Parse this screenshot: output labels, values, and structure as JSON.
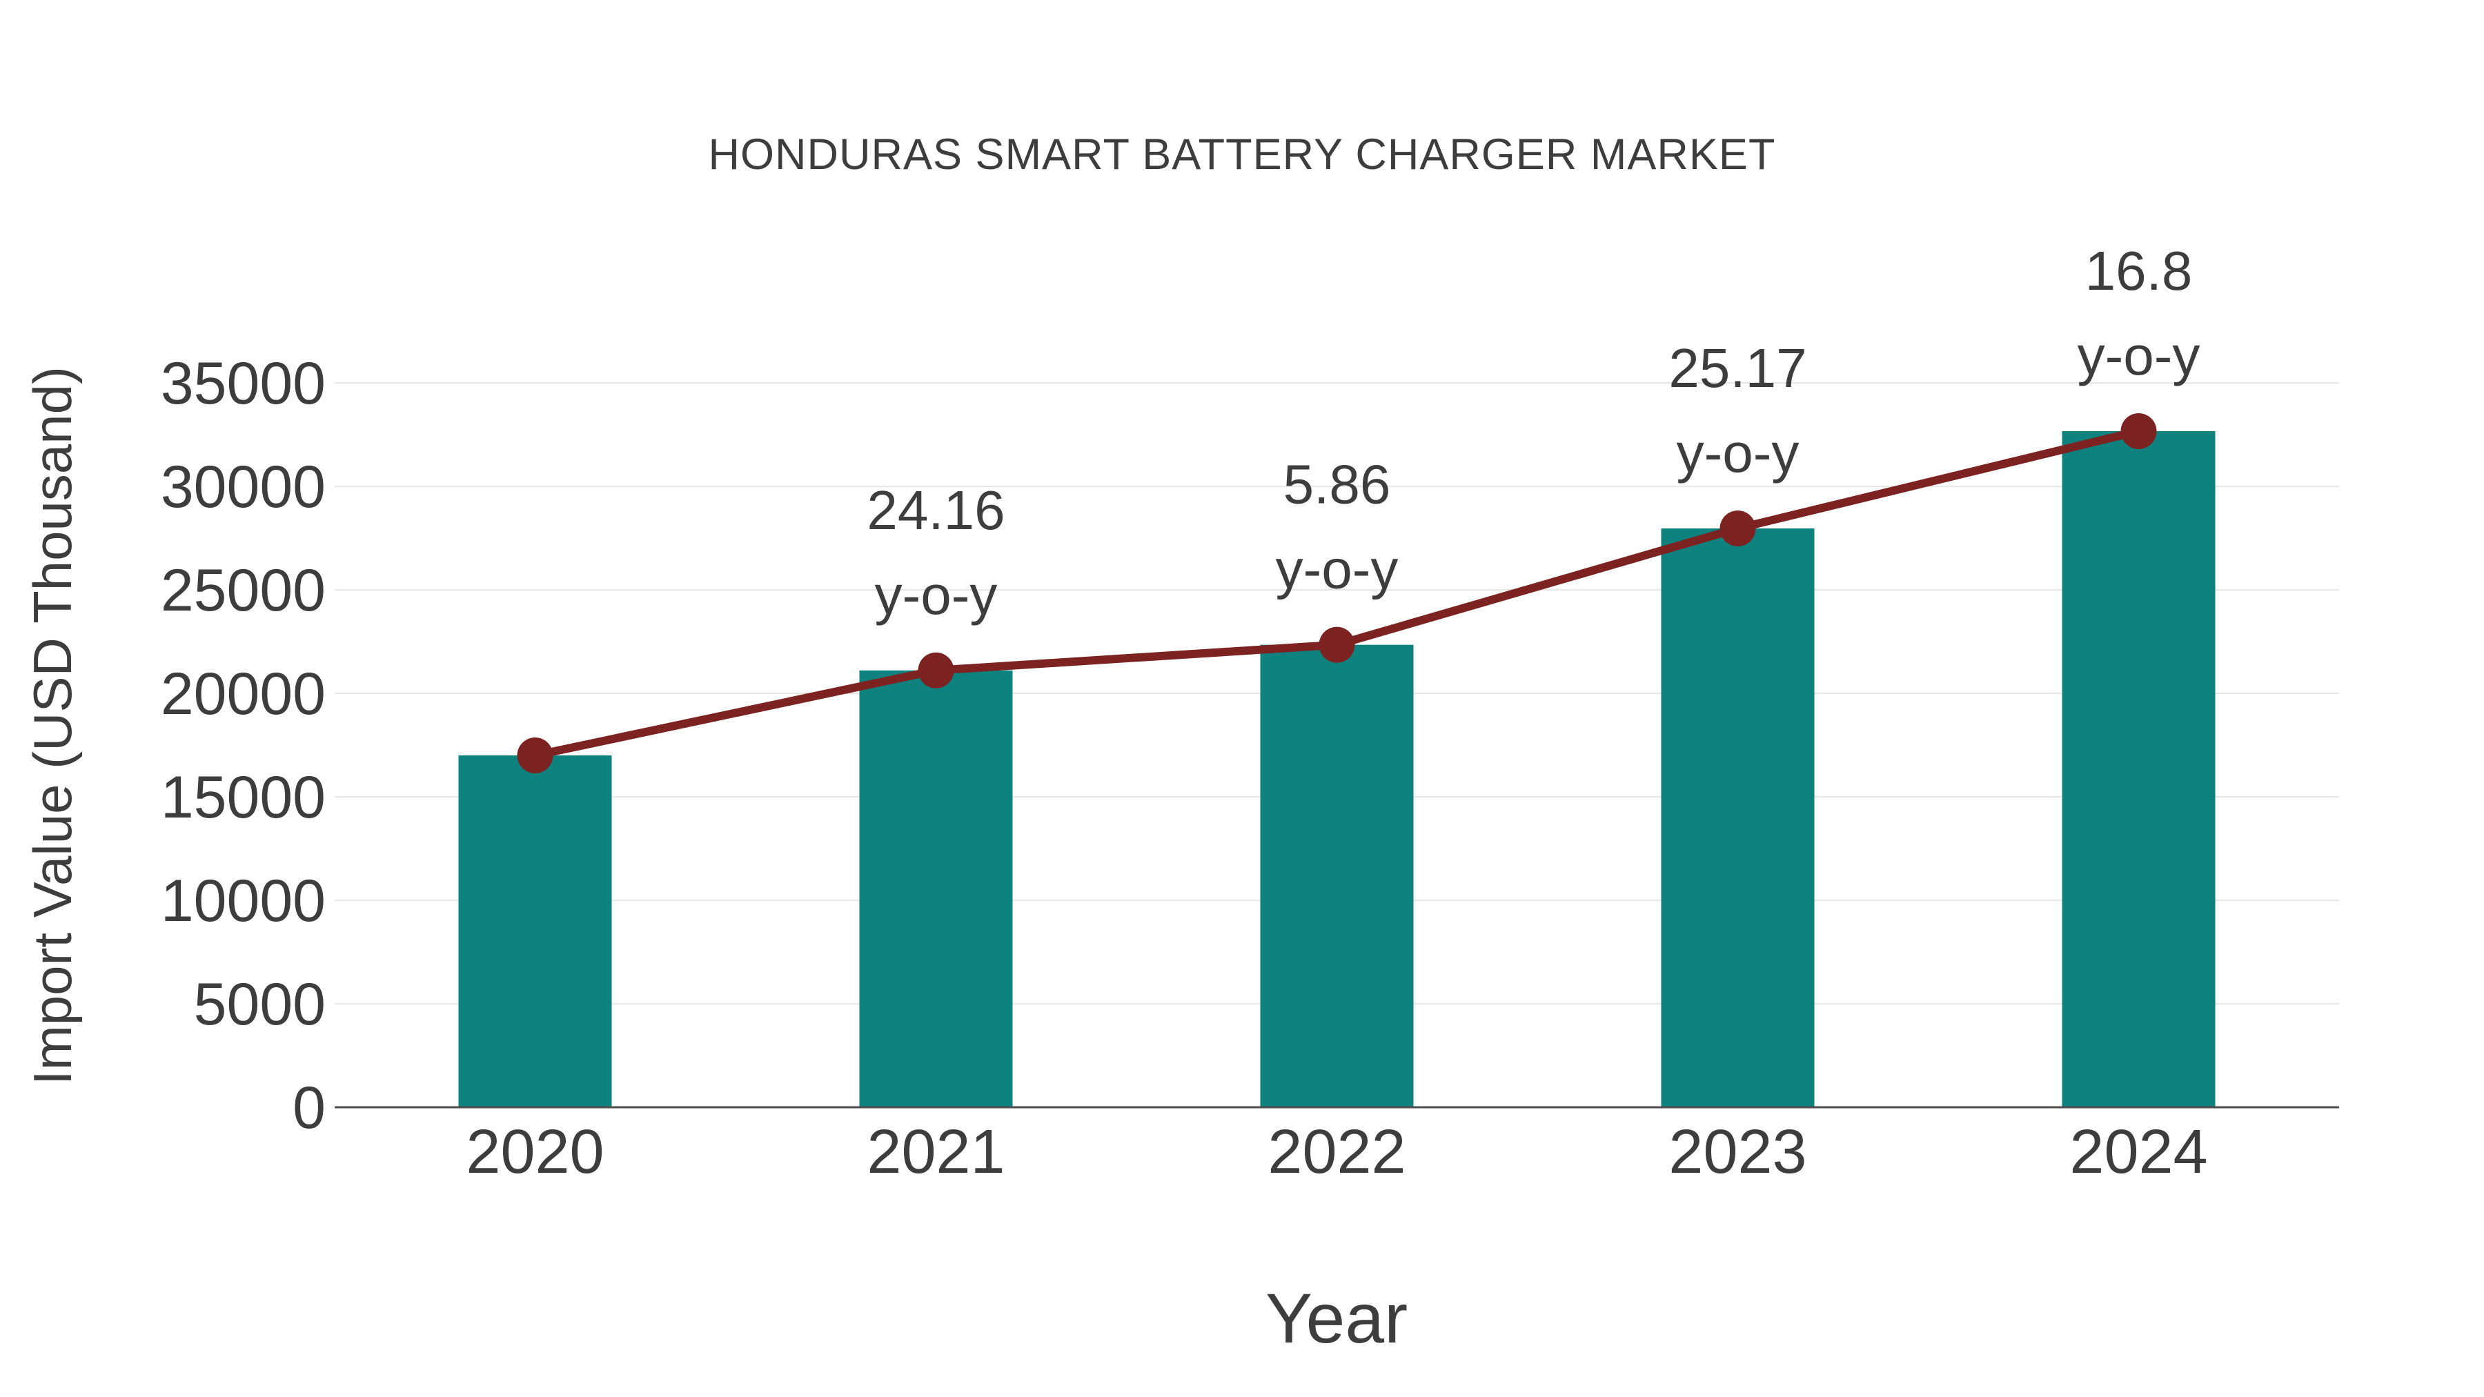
{
  "title": "HONDURAS SMART BATTERY CHARGER MARKET",
  "chart_data": {
    "type": "bar",
    "title": "HONDURAS SMART BATTERY CHARGER MARKET",
    "xlabel": "Year",
    "ylabel": "Import Value (USD Thousand)",
    "categories": [
      "2020",
      "2021",
      "2022",
      "2023",
      "2024"
    ],
    "series": [
      {
        "name": "Import Value bars",
        "type": "bar",
        "values": [
          17000,
          21107,
          22344,
          27968,
          32667
        ]
      },
      {
        "name": "Import Value trend",
        "type": "line",
        "values": [
          17000,
          21107,
          22344,
          27968,
          32667
        ]
      }
    ],
    "annotations": [
      {
        "category": "2021",
        "value": "24.16",
        "suffix": "y-o-y"
      },
      {
        "category": "2022",
        "value": "5.86",
        "suffix": "y-o-y"
      },
      {
        "category": "2023",
        "value": "25.17",
        "suffix": "y-o-y"
      },
      {
        "category": "2024",
        "value": "16.8",
        "suffix": "y-o-y"
      }
    ],
    "ylim": [
      0,
      35000
    ],
    "ytick_step": 5000,
    "yticks": [
      0,
      5000,
      10000,
      15000,
      20000,
      25000,
      30000,
      35000
    ],
    "grid": "horizontal",
    "legend": "none",
    "colors": {
      "bar": "#0d827f",
      "line": "#7c2322",
      "marker": "#7c2322",
      "text": "#3d3d3d",
      "axis_line": "#4d4d4d",
      "gridline": "#e5e5e5",
      "background": "#ffffff"
    }
  }
}
